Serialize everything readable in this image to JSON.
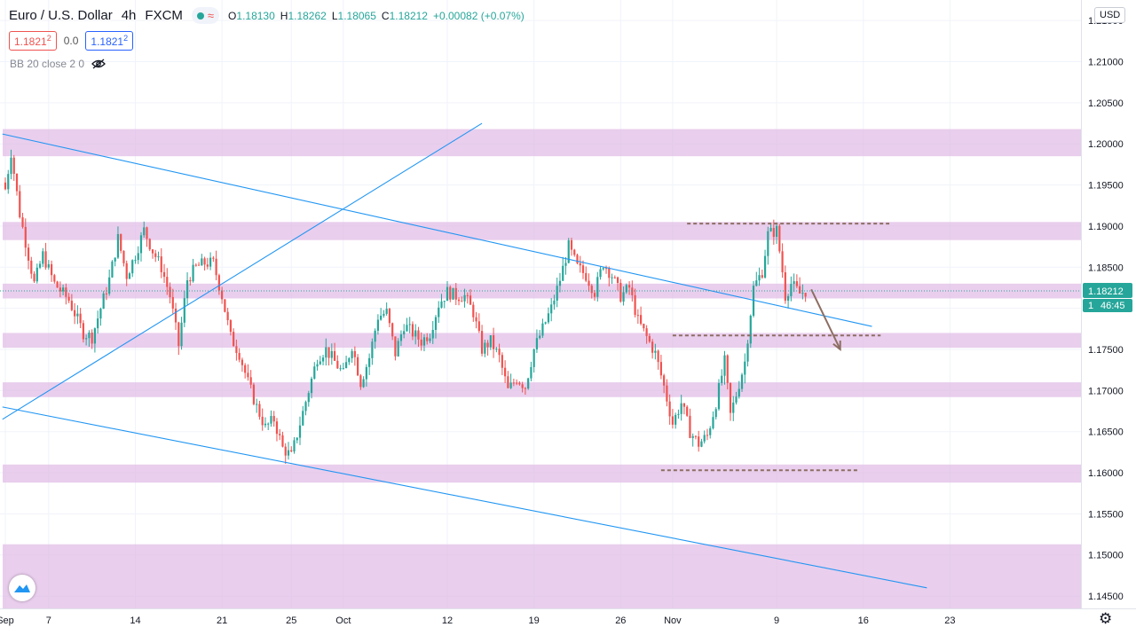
{
  "header": {
    "symbol_title": "Euro / U.S. Dollar",
    "interval": "4h",
    "exchange": "FXCM",
    "wave_symbol": "≈",
    "ohlc": {
      "o_label": "O",
      "o": "1.18130",
      "h_label": "H",
      "h": "1.18262",
      "l_label": "L",
      "l": "1.18065",
      "c_label": "C",
      "c": "1.18212",
      "change": "+0.00082 (+0.07%)"
    },
    "sell_price": "1.1821",
    "sell_price_sup": "2",
    "spread": "0.0",
    "buy_price": "1.1821",
    "buy_price_sup": "2",
    "indicator": "BB 20 close 2 0"
  },
  "price_scale": {
    "currency_button": "USD",
    "current_price_label": "1.18212",
    "countdown": "46:45",
    "countdown_prefix": "1"
  },
  "colors": {
    "up": "#26a69a",
    "down": "#ef5350",
    "zone": "#e1bee7",
    "trendline": "#2196f3",
    "level": "#8d6e63",
    "arrow": "#8d6e63",
    "grid": "#f0f3fa"
  },
  "icons": {
    "logo": "tradingview-logo-icon",
    "settings": "gear-icon",
    "visibility": "eye-off-icon"
  },
  "chart_data": {
    "type": "candlestick",
    "ylim": [
      1.1435,
      1.2175
    ],
    "y_ticks": [
      "1.21500",
      "1.21000",
      "1.20500",
      "1.20000",
      "1.19500",
      "1.19000",
      "1.18500",
      "1.18000",
      "1.17500",
      "1.17000",
      "1.16500",
      "1.16000",
      "1.15500",
      "1.15000",
      "1.14500"
    ],
    "x_ticks": [
      {
        "label": "Sep",
        "bar": 0
      },
      {
        "label": "7",
        "bar": 15
      },
      {
        "label": "14",
        "bar": 45
      },
      {
        "label": "21",
        "bar": 75
      },
      {
        "label": "25",
        "bar": 99
      },
      {
        "label": "Oct",
        "bar": 117
      },
      {
        "label": "12",
        "bar": 153
      },
      {
        "label": "19",
        "bar": 183
      },
      {
        "label": "26",
        "bar": 213
      },
      {
        "label": "Nov",
        "bar": 231
      },
      {
        "label": "9",
        "bar": 267
      },
      {
        "label": "16",
        "bar": 297
      },
      {
        "label": "23",
        "bar": 327
      }
    ],
    "anchors": [
      [
        0,
        1.1945
      ],
      [
        2,
        1.199
      ],
      [
        5,
        1.1915
      ],
      [
        10,
        1.183
      ],
      [
        13,
        1.1865
      ],
      [
        17,
        1.183
      ],
      [
        22,
        1.181
      ],
      [
        27,
        1.177
      ],
      [
        30,
        1.1765
      ],
      [
        33,
        1.18
      ],
      [
        36,
        1.1835
      ],
      [
        39,
        1.1885
      ],
      [
        42,
        1.184
      ],
      [
        45,
        1.1865
      ],
      [
        48,
        1.1895
      ],
      [
        51,
        1.187
      ],
      [
        54,
        1.185
      ],
      [
        57,
        1.1815
      ],
      [
        60,
        1.1755
      ],
      [
        63,
        1.1835
      ],
      [
        66,
        1.185
      ],
      [
        69,
        1.1855
      ],
      [
        72,
        1.1855
      ],
      [
        75,
        1.1815
      ],
      [
        78,
        1.1765
      ],
      [
        81,
        1.1745
      ],
      [
        84,
        1.171
      ],
      [
        87,
        1.168
      ],
      [
        90,
        1.1655
      ],
      [
        93,
        1.1665
      ],
      [
        96,
        1.163
      ],
      [
        99,
        1.162
      ],
      [
        102,
        1.166
      ],
      [
        105,
        1.17
      ],
      [
        108,
        1.174
      ],
      [
        111,
        1.175
      ],
      [
        114,
        1.1735
      ],
      [
        117,
        1.172
      ],
      [
        120,
        1.1755
      ],
      [
        123,
        1.171
      ],
      [
        126,
        1.174
      ],
      [
        129,
        1.179
      ],
      [
        132,
        1.1795
      ],
      [
        135,
        1.1745
      ],
      [
        138,
        1.178
      ],
      [
        141,
        1.177
      ],
      [
        144,
        1.176
      ],
      [
        147,
        1.177
      ],
      [
        150,
        1.1805
      ],
      [
        153,
        1.182
      ],
      [
        156,
        1.1815
      ],
      [
        159,
        1.1815
      ],
      [
        162,
        1.1795
      ],
      [
        165,
        1.175
      ],
      [
        168,
        1.176
      ],
      [
        171,
        1.174
      ],
      [
        174,
        1.17
      ],
      [
        177,
        1.1715
      ],
      [
        180,
        1.1705
      ],
      [
        183,
        1.175
      ],
      [
        186,
        1.1775
      ],
      [
        189,
        1.18
      ],
      [
        192,
        1.1835
      ],
      [
        195,
        1.1875
      ],
      [
        198,
        1.185
      ],
      [
        201,
        1.184
      ],
      [
        204,
        1.182
      ],
      [
        207,
        1.1855
      ],
      [
        210,
        1.184
      ],
      [
        213,
        1.1815
      ],
      [
        216,
        1.1825
      ],
      [
        219,
        1.1785
      ],
      [
        222,
        1.1765
      ],
      [
        225,
        1.1745
      ],
      [
        228,
        1.1705
      ],
      [
        231,
        1.166
      ],
      [
        234,
        1.1685
      ],
      [
        237,
        1.165
      ],
      [
        240,
        1.1635
      ],
      [
        243,
        1.1645
      ],
      [
        246,
        1.1685
      ],
      [
        249,
        1.1735
      ],
      [
        251,
        1.167
      ],
      [
        253,
        1.1695
      ],
      [
        256,
        1.1735
      ],
      [
        259,
        1.1825
      ],
      [
        262,
        1.1845
      ],
      [
        264,
        1.189
      ],
      [
        267,
        1.1895
      ],
      [
        269,
        1.1845
      ],
      [
        270,
        1.1815
      ],
      [
        272,
        1.183
      ],
      [
        275,
        1.1818
      ],
      [
        277,
        1.1821
      ]
    ],
    "zones": [
      [
        1.2018,
        1.1985
      ],
      [
        1.1905,
        1.1883
      ],
      [
        1.183,
        1.1812
      ],
      [
        1.177,
        1.1752
      ],
      [
        1.171,
        1.1692
      ],
      [
        1.161,
        1.1588
      ],
      [
        1.1513,
        1.1435
      ]
    ],
    "trendlines": [
      {
        "from": [
          -1,
          1.2012
        ],
        "to": [
          300,
          1.1778
        ]
      },
      {
        "from": [
          -1,
          1.1665
        ],
        "to": [
          165,
          1.2025
        ]
      },
      {
        "from": [
          -1,
          1.168
        ],
        "to": [
          319,
          1.146
        ]
      }
    ],
    "levels": [
      {
        "price": 1.1903,
        "from": 236,
        "to": 306
      },
      {
        "price": 1.1767,
        "from": 231,
        "to": 303
      },
      {
        "price": 1.1603,
        "from": 227,
        "to": 295
      }
    ],
    "arrow": {
      "from": [
        279,
        1.1823
      ],
      "to": [
        289,
        1.175
      ]
    },
    "current_price": 1.18212
  }
}
